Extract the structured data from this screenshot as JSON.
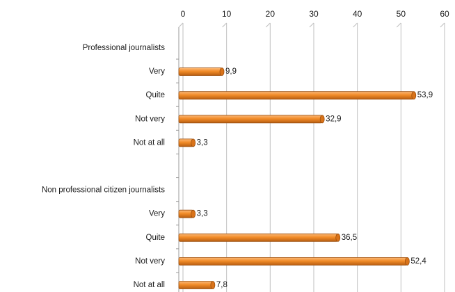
{
  "chart_data": {
    "type": "bar",
    "orientation": "horizontal",
    "xlim": [
      0,
      60
    ],
    "x_ticks": [
      0,
      10,
      20,
      30,
      40,
      50,
      60
    ],
    "x_axis_position": "top",
    "grid": true,
    "bar_color": "#f28c28",
    "categories": [
      {
        "label": "Professional journalists",
        "value": null,
        "value_label": ""
      },
      {
        "label": "Very",
        "value": 9.9,
        "value_label": "9,9"
      },
      {
        "label": "Quite",
        "value": 53.9,
        "value_label": "53,9"
      },
      {
        "label": "Not very",
        "value": 32.9,
        "value_label": "32,9"
      },
      {
        "label": "Not at all",
        "value": 3.3,
        "value_label": "3,3"
      },
      {
        "label": "",
        "value": null,
        "value_label": ""
      },
      {
        "label": "Non professional citizen journalists",
        "value": null,
        "value_label": ""
      },
      {
        "label": "Very",
        "value": 3.3,
        "value_label": "3,3"
      },
      {
        "label": "Quite",
        "value": 36.5,
        "value_label": "36,5"
      },
      {
        "label": "Not very",
        "value": 52.4,
        "value_label": "52,4"
      },
      {
        "label": "Not at all",
        "value": 7.8,
        "value_label": "7,8"
      }
    ]
  }
}
